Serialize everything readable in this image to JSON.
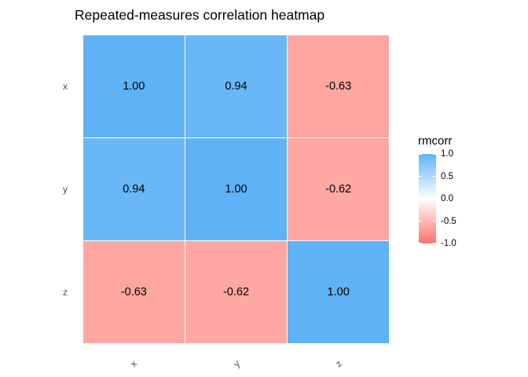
{
  "title": "Repeated-measures correlation heatmap",
  "chart_data": {
    "type": "heatmap",
    "title": "Repeated-measures correlation heatmap",
    "x_categories": [
      "x",
      "y",
      "z"
    ],
    "y_categories": [
      "x",
      "y",
      "z"
    ],
    "matrix": [
      [
        1.0,
        0.94,
        -0.63
      ],
      [
        0.94,
        1.0,
        -0.62
      ],
      [
        -0.63,
        -0.62,
        1.0
      ]
    ],
    "cell_labels": [
      [
        "1.00",
        "0.94",
        "-0.63"
      ],
      [
        "0.94",
        "1.00",
        "-0.62"
      ],
      [
        "-0.63",
        "-0.62",
        "1.00"
      ]
    ],
    "value_range": [
      -1.0,
      1.0
    ],
    "legend": {
      "title": "rmcorr",
      "position": "right",
      "tick_labels": [
        "1.0",
        "0.5",
        "0.0",
        "-0.5",
        "-1.0"
      ],
      "tick_values": [
        1.0,
        0.5,
        0.0,
        -0.5,
        -1.0
      ]
    },
    "colors": {
      "high": "#60B2F6",
      "mid": "#FFFFFF",
      "low": "#FF716A",
      "axis_text": "#4D4D4D",
      "cell_text": "#000000",
      "background": "#FFFFFF"
    }
  }
}
